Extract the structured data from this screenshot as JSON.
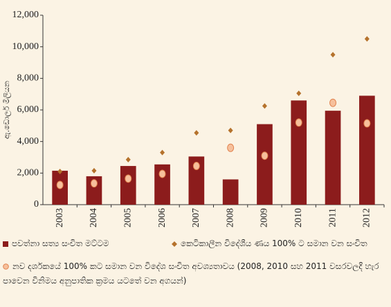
{
  "chart_data": {
    "type": "bar",
    "y_label": "ඇ.ඩොලර් මිලියන",
    "categories": [
      "2003",
      "2004",
      "2005",
      "2006",
      "2007",
      "2008",
      "2009",
      "2010",
      "2011",
      "2012"
    ],
    "series": [
      {
        "name": "පවත්නා සත්‍ය සංචිත මට්ටම",
        "type": "bar",
        "color": "#8c1c1c",
        "values": [
          2150,
          1800,
          2450,
          2550,
          3050,
          1600,
          5100,
          6600,
          5950,
          6900
        ]
      },
      {
        "name": "කෙටිකාලීන විදේශීය ණය 100% ට සමාන වන සංචිත",
        "type": "diamond",
        "color": "#b5722c",
        "values": [
          2100,
          2150,
          2850,
          3300,
          4550,
          4700,
          6250,
          7050,
          9500,
          10500
        ]
      },
      {
        "name": "නව දර්ශකයේ 100% කට සමාන වන විදේශ සංචිත අවශ්‍යතාවය (2008, 2010 සහ 2011 වසරවලදී හැර පාවෙන විනිමය අනුපාතික ක්‍රමය යටතේ වන අගයන්)",
        "type": "circle",
        "color": "#f6c09c",
        "values": [
          1250,
          1350,
          1650,
          1950,
          2450,
          3600,
          3100,
          5200,
          6450,
          5150
        ]
      }
    ],
    "ylim": [
      0,
      12000
    ],
    "yticks": [
      0,
      {
        "value": 2000,
        "label": "2,000"
      },
      {
        "value": 4000,
        "label": "4,000"
      },
      {
        "value": 6000,
        "label": "6,000"
      },
      {
        "value": 8000,
        "label": "8,000"
      },
      {
        "value": 10000,
        "label": "10,000"
      },
      {
        "value": 12000,
        "label": "12,000"
      }
    ],
    "grid": false
  }
}
